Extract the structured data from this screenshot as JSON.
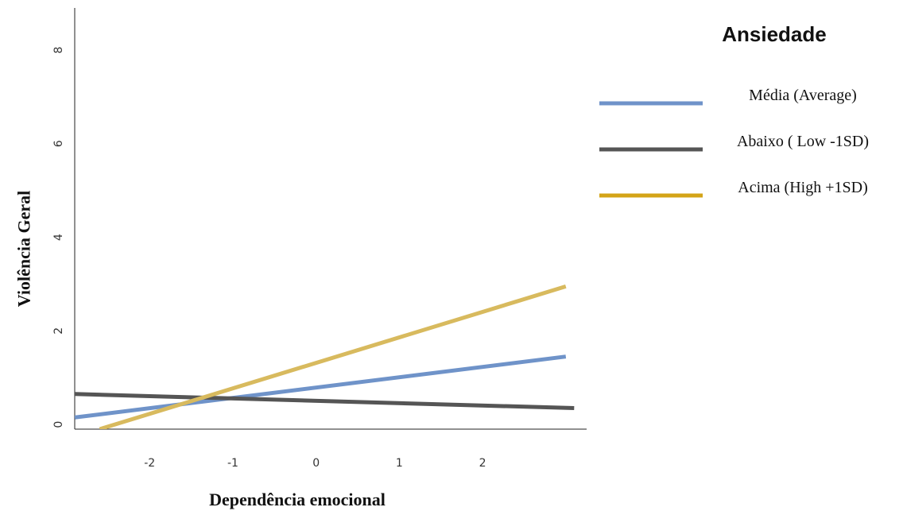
{
  "chart_data": {
    "type": "line",
    "title": "",
    "xlabel": "Dependência emocional",
    "ylabel": "Violência Geral",
    "xlim": [
      -2.9,
      3.25
    ],
    "ylim": [
      -0.1,
      8.9
    ],
    "xticks": [
      {
        "value": -2,
        "label": "-2"
      },
      {
        "value": -1,
        "label": "-1"
      },
      {
        "value": 0,
        "label": "0"
      },
      {
        "value": 1,
        "label": "1"
      },
      {
        "value": 2,
        "label": "2"
      }
    ],
    "yticks": [
      {
        "value": 0,
        "label": "0"
      },
      {
        "value": 2,
        "label": "2"
      },
      {
        "value": 4,
        "label": "4"
      },
      {
        "value": 6,
        "label": "6"
      },
      {
        "value": 8,
        "label": "8"
      }
    ],
    "legend": {
      "title": "Ansiedade",
      "position": "right"
    },
    "series": [
      {
        "name": "Média (Average)",
        "color": "#6f93c9",
        "x": [
          -2.9,
          3.0
        ],
        "y": [
          0.15,
          1.45
        ]
      },
      {
        "name": "Abaixo ( Low -1SD)",
        "color": "#555555",
        "x": [
          -2.9,
          3.1
        ],
        "y": [
          0.65,
          0.35
        ]
      },
      {
        "name": "Acima (High +1SD)",
        "color": "#d8ba5e",
        "legend_color": "#d4a418",
        "x": [
          -2.6,
          3.0
        ],
        "y": [
          -0.1,
          2.95
        ]
      }
    ],
    "grid": false
  }
}
